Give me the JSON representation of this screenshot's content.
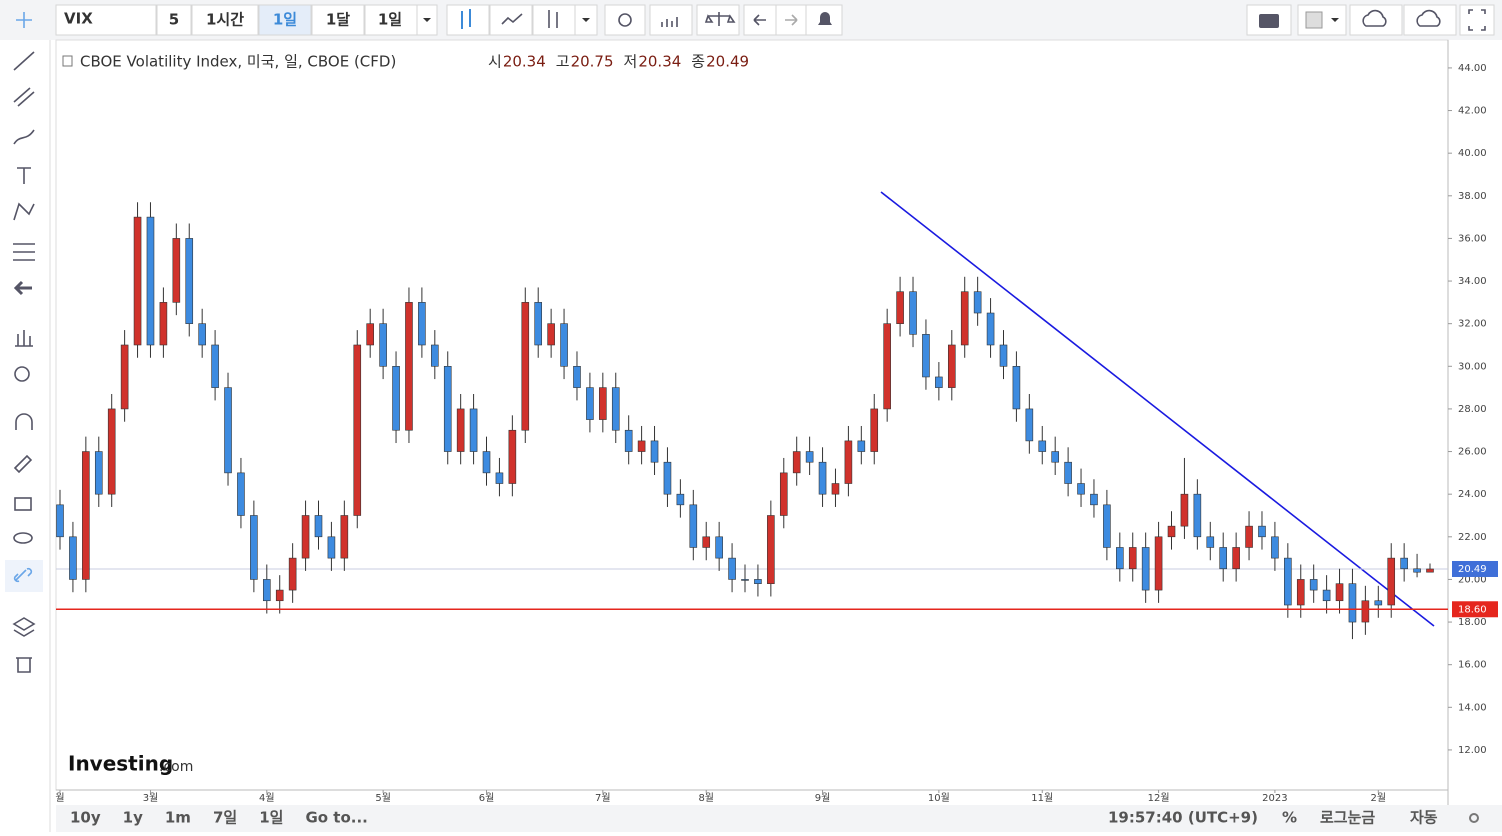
{
  "toolbar": {
    "symbol": "VIX",
    "intervals": [
      "5",
      "1시간",
      "1일",
      "1달",
      "1일"
    ]
  },
  "legend": {
    "title": "CBOE Volatility Index, 미국, 일, CBOE (CFD)",
    "items": [
      {
        "label": "시",
        "value": 20.34
      },
      {
        "label": "고",
        "value": 20.75
      },
      {
        "label": "저",
        "value": 20.34
      },
      {
        "label": "종",
        "value": 20.49
      }
    ]
  },
  "logo": {
    "brand": "Investing",
    "suffix": ".com"
  },
  "bottom": {
    "ranges": [
      "10y",
      "1y",
      "1m",
      "7일",
      "1일",
      "Go to..."
    ],
    "time": "19:57:40 (UTC+9)",
    "percent": "%",
    "log": "로그눈금",
    "auto": "자동"
  },
  "chart_data": {
    "type": "candlestick",
    "up_color": "#d0322c",
    "down_color": "#3d8be0",
    "ylim": [
      10.12,
      45.31
    ],
    "yticks": [
      {
        "value": 12,
        "label": "12.00"
      },
      {
        "value": 14,
        "label": "14.00"
      },
      {
        "value": 16,
        "label": "16.00"
      },
      {
        "value": 18,
        "label": "18.00"
      },
      {
        "value": 20,
        "label": "20.00"
      },
      {
        "value": 22,
        "label": "22.00"
      },
      {
        "value": 24,
        "label": "24.00"
      },
      {
        "value": 26,
        "label": "26.00"
      },
      {
        "value": 28,
        "label": "28.00"
      },
      {
        "value": 30,
        "label": "30.00"
      },
      {
        "value": 32,
        "label": "32.00"
      },
      {
        "value": 34,
        "label": "34.00"
      },
      {
        "value": 36,
        "label": "36.00"
      },
      {
        "value": 38,
        "label": "38.00"
      },
      {
        "value": 40,
        "label": "40.00"
      },
      {
        "value": 42,
        "label": "42.00"
      },
      {
        "value": 44,
        "label": "44.00"
      }
    ],
    "last_price": 20.49,
    "price_line": {
      "value": 18.6,
      "label": "18.60",
      "color": "#e5261d"
    },
    "categories": [
      "월",
      null,
      null,
      null,
      null,
      null,
      null,
      "3월",
      null,
      null,
      null,
      null,
      null,
      null,
      null,
      null,
      "4월",
      null,
      null,
      null,
      null,
      null,
      null,
      null,
      null,
      "5월",
      null,
      null,
      null,
      null,
      null,
      null,
      null,
      "6월",
      null,
      null,
      null,
      null,
      null,
      null,
      null,
      null,
      "7월",
      null,
      null,
      null,
      null,
      null,
      null,
      null,
      "8월",
      null,
      null,
      null,
      null,
      null,
      null,
      null,
      null,
      "9월",
      null,
      null,
      null,
      null,
      null,
      null,
      null,
      null,
      "10월",
      null,
      null,
      null,
      null,
      null,
      null,
      null,
      "11월",
      null,
      null,
      null,
      null,
      null,
      null,
      null,
      null,
      "12월",
      null,
      null,
      null,
      null,
      null,
      null,
      null,
      null,
      "2023",
      null,
      null,
      null,
      null,
      null,
      null,
      null,
      "2월",
      null,
      null,
      null,
      null
    ],
    "candles": [
      [
        23.5,
        24.2,
        21.4,
        22
      ],
      [
        22,
        22.7,
        19.4,
        20
      ],
      [
        20,
        26.7,
        19.4,
        26
      ],
      [
        26,
        26.7,
        23.4,
        24
      ],
      [
        24,
        28.7,
        23.4,
        28
      ],
      [
        28,
        31.7,
        27.4,
        31
      ],
      [
        31,
        37.7,
        30.4,
        37
      ],
      [
        37,
        37.7,
        30.4,
        31
      ],
      [
        31,
        33.7,
        30.4,
        33
      ],
      [
        33,
        36.7,
        32.4,
        36
      ],
      [
        36,
        36.7,
        31.4,
        32
      ],
      [
        32,
        32.7,
        30.4,
        31
      ],
      [
        31,
        31.7,
        28.4,
        29
      ],
      [
        29,
        29.7,
        24.4,
        25
      ],
      [
        25,
        25.7,
        22.4,
        23
      ],
      [
        23,
        23.7,
        19.4,
        20
      ],
      [
        20,
        20.7,
        18.4,
        19
      ],
      [
        19,
        20.2,
        18.4,
        19.5
      ],
      [
        19.5,
        21.7,
        18.9,
        21
      ],
      [
        21,
        23.7,
        20.4,
        23
      ],
      [
        23,
        23.7,
        21.4,
        22
      ],
      [
        22,
        22.7,
        20.4,
        21
      ],
      [
        21,
        23.7,
        20.4,
        23
      ],
      [
        23,
        31.7,
        22.4,
        31
      ],
      [
        31,
        32.7,
        30.4,
        32
      ],
      [
        32,
        32.7,
        29.4,
        30
      ],
      [
        30,
        30.7,
        26.4,
        27
      ],
      [
        27,
        33.7,
        26.4,
        33
      ],
      [
        33,
        33.7,
        30.4,
        31
      ],
      [
        31,
        31.7,
        29.4,
        30
      ],
      [
        30,
        30.7,
        25.4,
        26
      ],
      [
        26,
        28.7,
        25.4,
        28
      ],
      [
        28,
        28.7,
        25.4,
        26
      ],
      [
        26,
        26.7,
        24.4,
        25
      ],
      [
        25,
        25.7,
        23.9,
        24.5
      ],
      [
        24.5,
        27.7,
        23.9,
        27
      ],
      [
        27,
        33.7,
        26.4,
        33
      ],
      [
        33,
        33.7,
        30.4,
        31
      ],
      [
        31,
        32.7,
        30.4,
        32
      ],
      [
        32,
        32.7,
        29.4,
        30
      ],
      [
        30,
        30.7,
        28.4,
        29
      ],
      [
        29,
        29.7,
        26.9,
        27.5
      ],
      [
        27.5,
        29.7,
        26.9,
        29
      ],
      [
        29,
        29.7,
        26.4,
        27
      ],
      [
        27,
        27.7,
        25.4,
        26
      ],
      [
        26,
        27.2,
        25.4,
        26.5
      ],
      [
        26.5,
        27.2,
        24.9,
        25.5
      ],
      [
        25.5,
        26.2,
        23.4,
        24
      ],
      [
        24,
        24.7,
        22.9,
        23.5
      ],
      [
        23.5,
        24.2,
        20.9,
        21.5
      ],
      [
        21.5,
        22.7,
        20.9,
        22
      ],
      [
        22,
        22.7,
        20.4,
        21
      ],
      [
        21,
        21.7,
        19.4,
        20
      ],
      [
        20,
        20.7,
        19.4,
        20
      ],
      [
        20,
        20.7,
        19.2,
        19.8
      ],
      [
        19.8,
        23.7,
        19.2,
        23
      ],
      [
        23,
        25.7,
        22.4,
        25
      ],
      [
        25,
        26.7,
        24.4,
        26
      ],
      [
        26,
        26.7,
        24.9,
        25.5
      ],
      [
        25.5,
        26.2,
        23.4,
        24
      ],
      [
        24,
        25.2,
        23.4,
        24.5
      ],
      [
        24.5,
        27.2,
        23.9,
        26.5
      ],
      [
        26.5,
        27.2,
        25.4,
        26
      ],
      [
        26,
        28.7,
        25.4,
        28
      ],
      [
        28,
        32.7,
        27.4,
        32
      ],
      [
        32,
        34.2,
        31.4,
        33.5
      ],
      [
        33.5,
        34.2,
        30.9,
        31.5
      ],
      [
        31.5,
        32.2,
        28.9,
        29.5
      ],
      [
        29.5,
        30.2,
        28.4,
        29
      ],
      [
        29,
        31.7,
        28.4,
        31
      ],
      [
        31,
        34.2,
        30.4,
        33.5
      ],
      [
        33.5,
        34.2,
        31.9,
        32.5
      ],
      [
        32.5,
        33.2,
        30.4,
        31
      ],
      [
        31,
        31.7,
        29.4,
        30
      ],
      [
        30,
        30.7,
        27.4,
        28
      ],
      [
        28,
        28.7,
        25.9,
        26.5
      ],
      [
        26.5,
        27.2,
        25.4,
        26
      ],
      [
        26,
        26.7,
        24.9,
        25.5
      ],
      [
        25.5,
        26.2,
        23.9,
        24.5
      ],
      [
        24.5,
        25.2,
        23.4,
        24
      ],
      [
        24,
        24.7,
        22.9,
        23.5
      ],
      [
        23.5,
        24.2,
        20.9,
        21.5
      ],
      [
        21.5,
        22.2,
        19.9,
        20.5
      ],
      [
        20.5,
        22.2,
        19.9,
        21.5
      ],
      [
        21.5,
        22.2,
        18.9,
        19.5
      ],
      [
        19.5,
        22.7,
        18.9,
        22
      ],
      [
        22,
        23.2,
        21.4,
        22.5
      ],
      [
        22.5,
        25.7,
        21.9,
        24
      ],
      [
        24,
        24.7,
        21.4,
        22
      ],
      [
        22,
        22.7,
        20.9,
        21.5
      ],
      [
        21.5,
        22.2,
        19.9,
        20.5
      ],
      [
        20.5,
        22.2,
        19.9,
        21.5
      ],
      [
        21.5,
        23.2,
        20.9,
        22.5
      ],
      [
        22.5,
        23.2,
        21.4,
        22
      ],
      [
        22,
        22.7,
        20.4,
        21
      ],
      [
        21,
        21.7,
        18.2,
        18.8
      ],
      [
        18.8,
        20.7,
        18.2,
        20
      ],
      [
        20,
        20.7,
        18.9,
        19.5
      ],
      [
        19.5,
        20.2,
        18.4,
        19
      ],
      [
        19,
        20.5,
        18.4,
        19.8
      ],
      [
        19.8,
        20.5,
        17.2,
        18
      ],
      [
        18,
        19.7,
        17.4,
        19
      ],
      [
        19,
        19.7,
        18.2,
        18.8
      ],
      [
        18.8,
        21.7,
        18.2,
        21
      ],
      [
        21,
        21.7,
        19.9,
        20.5
      ],
      [
        20.5,
        21.2,
        20.1,
        20.34
      ],
      [
        20.34,
        20.75,
        20.34,
        20.49
      ]
    ]
  }
}
